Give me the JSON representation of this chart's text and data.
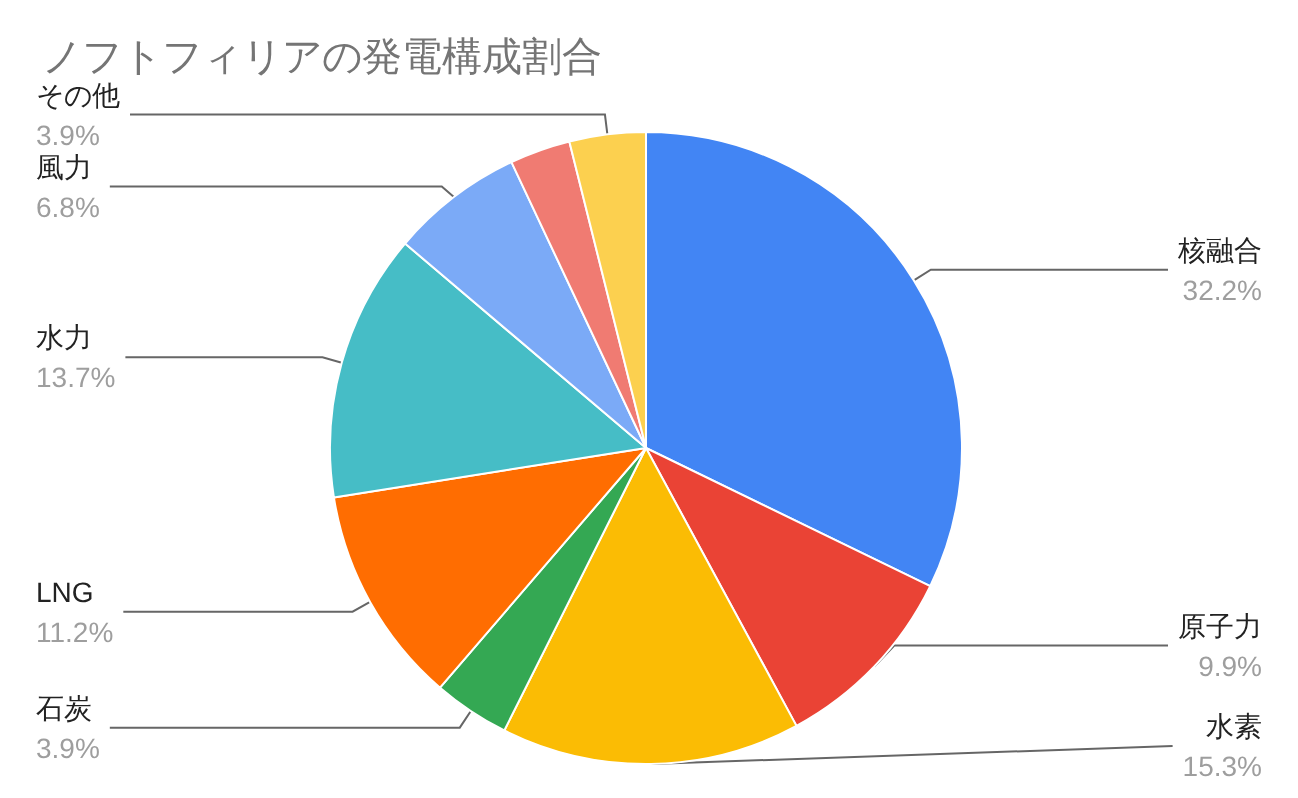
{
  "chart_data": {
    "type": "pie",
    "title": "ノフトフィリアの発電構成割合",
    "categories": [
      "核融合",
      "原子力",
      "水素",
      "石炭",
      "LNG",
      "水力",
      "風力",
      null,
      "その他"
    ],
    "values": [
      32.2,
      9.9,
      15.3,
      3.9,
      11.2,
      13.7,
      6.8,
      3.1,
      3.9
    ],
    "colors": [
      "#4285f4",
      "#ea4335",
      "#fbbc04",
      "#34a853",
      "#ff6d01",
      "#46bdc6",
      "#7baaf7",
      "#f07b72",
      "#fcd04f"
    ],
    "value_labels": [
      "32.2%",
      "9.9%",
      "15.3%",
      "3.9%",
      "11.2%",
      "13.7%",
      "6.8%",
      null,
      "3.9%"
    ],
    "legend": false
  }
}
